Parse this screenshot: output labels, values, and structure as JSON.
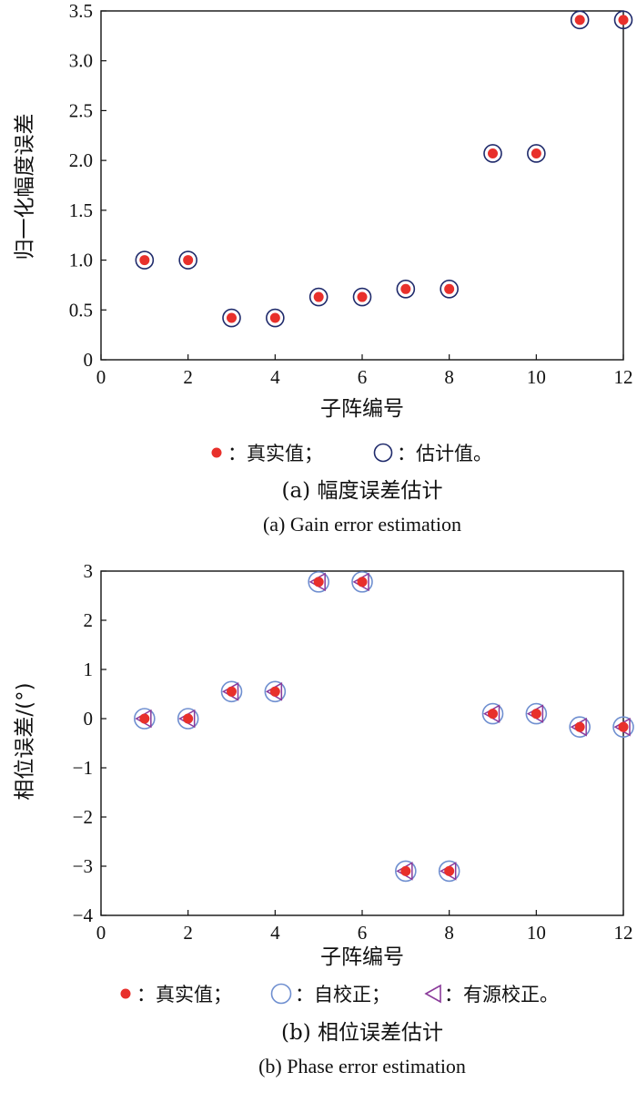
{
  "chart_data": [
    {
      "type": "scatter",
      "title": "",
      "xlabel": "子阵编号",
      "ylabel": "归一化幅度误差",
      "xlim": [
        0,
        12
      ],
      "ylim": [
        0,
        3.5
      ],
      "xticks": [
        0,
        2,
        4,
        6,
        8,
        10,
        12
      ],
      "xtick_labels": [
        "0",
        "2",
        "4",
        "6",
        "8",
        "10",
        "12"
      ],
      "yticks": [
        0,
        0.5,
        1.0,
        1.5,
        2.0,
        2.5,
        3.0,
        3.5
      ],
      "ytick_labels": [
        "0",
        "0.5",
        "1.0",
        "1.5",
        "2.0",
        "2.5",
        "3.0",
        "3.5"
      ],
      "grid": false,
      "legend_position": "below",
      "series": [
        {
          "name": "：真实值；",
          "marker": "filled-dot",
          "color": "#e8302b",
          "x": [
            1,
            2,
            3,
            4,
            5,
            6,
            7,
            8,
            9,
            10,
            11,
            12
          ],
          "values": [
            1.0,
            1.0,
            0.42,
            0.42,
            0.63,
            0.63,
            0.71,
            0.71,
            2.07,
            2.07,
            3.41,
            3.41
          ]
        },
        {
          "name": "：估计值。",
          "marker": "open-circle",
          "color": "#1f2a6b",
          "x": [
            1,
            2,
            3,
            4,
            5,
            6,
            7,
            8,
            9,
            10,
            11,
            12
          ],
          "values": [
            1.0,
            1.0,
            0.42,
            0.42,
            0.63,
            0.63,
            0.71,
            0.71,
            2.07,
            2.07,
            3.41,
            3.41
          ]
        }
      ],
      "caption_cn": "(a) 幅度误差估计",
      "caption_en": "(a) Gain error estimation"
    },
    {
      "type": "scatter",
      "title": "",
      "xlabel": "子阵编号",
      "ylabel": "相位误差/(°)",
      "xlim": [
        0,
        12
      ],
      "ylim": [
        -4,
        3
      ],
      "xticks": [
        0,
        2,
        4,
        6,
        8,
        10,
        12
      ],
      "xtick_labels": [
        "0",
        "2",
        "4",
        "6",
        "8",
        "10",
        "12"
      ],
      "yticks": [
        -4,
        -3,
        -2,
        -1,
        0,
        1,
        2,
        3
      ],
      "ytick_labels": [
        "−4",
        "−3",
        "−2",
        "−1",
        "0",
        "1",
        "2",
        "3"
      ],
      "grid": false,
      "legend_position": "below",
      "series": [
        {
          "name": "：真实值；",
          "marker": "filled-dot",
          "color": "#e8302b",
          "x": [
            1,
            2,
            3,
            4,
            5,
            6,
            7,
            8,
            9,
            10,
            11,
            12
          ],
          "values": [
            0,
            0,
            0.55,
            0.55,
            2.78,
            2.78,
            -3.1,
            -3.1,
            0.1,
            0.1,
            -0.17,
            -0.17
          ]
        },
        {
          "name": "：自校正；",
          "marker": "open-circle",
          "color": "#6f8fd0",
          "x": [
            1,
            2,
            3,
            4,
            5,
            6,
            7,
            8,
            9,
            10,
            11,
            12
          ],
          "values": [
            0,
            0,
            0.55,
            0.55,
            2.78,
            2.78,
            -3.1,
            -3.1,
            0.1,
            0.1,
            -0.17,
            -0.17
          ]
        },
        {
          "name": "：有源校正。",
          "marker": "open-triangle-left",
          "color": "#8a3a9a",
          "x": [
            1,
            2,
            3,
            4,
            5,
            6,
            7,
            8,
            9,
            10,
            11,
            12
          ],
          "values": [
            0,
            0,
            0.55,
            0.55,
            2.78,
            2.78,
            -3.1,
            -3.1,
            0.1,
            0.1,
            -0.17,
            -0.17
          ]
        }
      ],
      "caption_cn": "(b) 相位误差估计",
      "caption_en": "(b) Phase error estimation"
    }
  ]
}
